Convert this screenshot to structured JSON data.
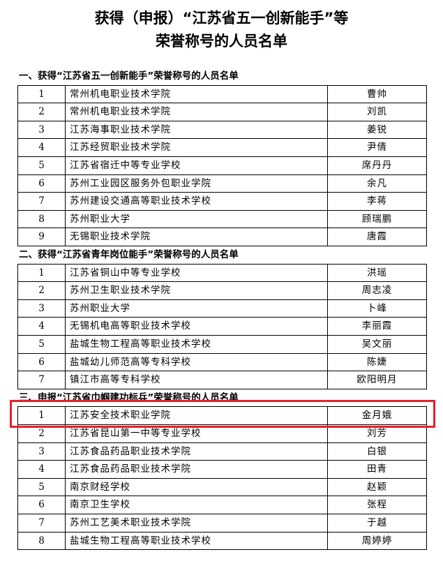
{
  "title": [
    "获得（申报）“江苏省五一创新能手”等",
    "荣誉称号的人员名单"
  ],
  "sections": [
    {
      "heading": "一、获得“江苏省五一创新能手”荣誉称号的人员名单",
      "rows": [
        [
          "1",
          "常州机电职业技术学院",
          "曹帅"
        ],
        [
          "2",
          "常州机电职业技术学院",
          "刘凯"
        ],
        [
          "3",
          "江苏海事职业技术学院",
          "姜锐"
        ],
        [
          "4",
          "江苏经贸职业技术学院",
          "尹倩"
        ],
        [
          "5",
          "江苏省宿迁中等专业学校",
          "席丹丹"
        ],
        [
          "6",
          "苏州工业园区服务外包职业学院",
          "余凡"
        ],
        [
          "7",
          "苏州建设交通高等职业技术学校",
          "李蒋"
        ],
        [
          "8",
          "苏州职业大学",
          "顾瑞鹏"
        ],
        [
          "9",
          "无锡职业技术学院",
          "唐霞"
        ]
      ]
    },
    {
      "heading": "二、获得“江苏省青年岗位能手”荣誉称号的人员名单",
      "rows": [
        [
          "1",
          "江苏省铜山中等专业学校",
          "洪瑶"
        ],
        [
          "2",
          "苏州卫生职业技术学院",
          "周志凌"
        ],
        [
          "3",
          "苏州职业大学",
          "卜峰"
        ],
        [
          "4",
          "无锡机电高等职业技术学校",
          "李丽霞"
        ],
        [
          "5",
          "盐城生物工程高等职业技术学校",
          "吴文丽"
        ],
        [
          "6",
          "盐城幼儿师范高等专科学校",
          "陈婕"
        ],
        [
          "7",
          "镇江市高等专科学校",
          "欧阳明月"
        ]
      ]
    },
    {
      "heading": "三、申报“江苏省巾帼建功标兵”荣誉称号的人员名单",
      "rows": [
        [
          "1",
          "江苏安全技术职业学院",
          "金月娥"
        ],
        [
          "2",
          "江苏省昆山第一中等专业学校",
          "刘芳"
        ],
        [
          "3",
          "江苏食品药品职业技术学院",
          "白银"
        ],
        [
          "4",
          "江苏食品药品职业技术学院",
          "田青"
        ],
        [
          "5",
          "南京财经学校",
          "赵颖"
        ],
        [
          "6",
          "南京卫生学校",
          "张程"
        ],
        [
          "7",
          "苏州工艺美术职业技术学院",
          "于越"
        ],
        [
          "8",
          "盐城生物工程高等职业技术学校",
          "周婷婷"
        ]
      ]
    }
  ]
}
